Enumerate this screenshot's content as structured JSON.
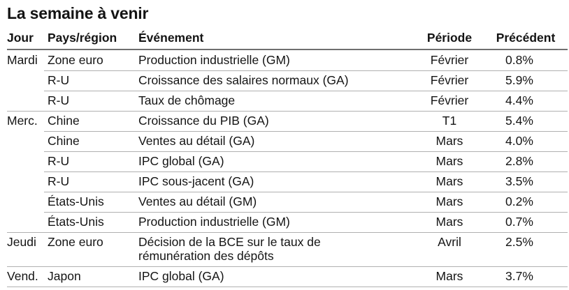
{
  "title": "La semaine à venir",
  "table": {
    "columns": [
      {
        "key": "jour",
        "label": "Jour"
      },
      {
        "key": "pays",
        "label": "Pays/région"
      },
      {
        "key": "evenement",
        "label": "Événement"
      },
      {
        "key": "periode",
        "label": "Période"
      },
      {
        "key": "precedent",
        "label": "Précédent"
      }
    ],
    "rows": [
      {
        "jour": "Mardi",
        "pays": "Zone euro",
        "evenement": "Production industrielle (GM)",
        "periode": "Février",
        "precedent": "0.8%"
      },
      {
        "jour": "",
        "pays": "R-U",
        "evenement": "Croissance des salaires normaux (GA)",
        "periode": "Février",
        "precedent": "5.9%"
      },
      {
        "jour": "",
        "pays": "R-U",
        "evenement": "Taux de chômage",
        "periode": "Février",
        "precedent": "4.4%"
      },
      {
        "jour": "Merc.",
        "pays": "Chine",
        "evenement": "Croissance du PIB (GA)",
        "periode": "T1",
        "precedent": "5.4%"
      },
      {
        "jour": "",
        "pays": "Chine",
        "evenement": "Ventes au détail (GA)",
        "periode": "Mars",
        "precedent": "4.0%"
      },
      {
        "jour": "",
        "pays": "R-U",
        "evenement": "IPC global (GA)",
        "periode": "Mars",
        "precedent": "2.8%"
      },
      {
        "jour": "",
        "pays": "R-U",
        "evenement": "IPC sous-jacent (GA)",
        "periode": "Mars",
        "precedent": "3.5%"
      },
      {
        "jour": "",
        "pays": "États-Unis",
        "evenement": "Ventes au détail (GM)",
        "periode": "Mars",
        "precedent": "0.2%"
      },
      {
        "jour": "",
        "pays": "États-Unis",
        "evenement": "Production industrielle (GM)",
        "periode": "Mars",
        "precedent": "0.7%"
      },
      {
        "jour": "Jeudi",
        "pays": "Zone euro",
        "evenement": "Décision de la BCE sur le taux de rémunération des dépôts",
        "periode": "Avril",
        "precedent": "2.5%"
      },
      {
        "jour": "Vend.",
        "pays": "Japon",
        "evenement": "IPC global (GA)",
        "periode": "Mars",
        "precedent": "3.7%"
      }
    ]
  },
  "colors": {
    "text": "#141414",
    "header_rule": "#6f6f6f",
    "row_rule": "#b0b0b0",
    "background": "#ffffff"
  }
}
